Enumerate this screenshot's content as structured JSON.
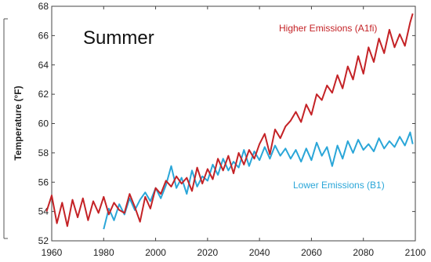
{
  "chart_data": {
    "type": "line",
    "annotation": "Summer",
    "ylabel": "Temperature (°F)",
    "xlim": [
      1960,
      2100
    ],
    "ylim": [
      52,
      68
    ],
    "x_ticks": [
      1960,
      1980,
      2000,
      2020,
      2040,
      2060,
      2080,
      2100
    ],
    "y_ticks": [
      52,
      54,
      56,
      58,
      60,
      62,
      64,
      66,
      68
    ],
    "grid": false,
    "series": [
      {
        "name": "Higher Emissions (A1fi)",
        "color": "#c42226",
        "x": [
          1958,
          1960,
          1962,
          1964,
          1966,
          1968,
          1970,
          1972,
          1974,
          1976,
          1978,
          1980,
          1982,
          1984,
          1986,
          1988,
          1990,
          1992,
          1994,
          1996,
          1998,
          2000,
          2002,
          2004,
          2006,
          2008,
          2010,
          2012,
          2014,
          2016,
          2018,
          2020,
          2022,
          2024,
          2026,
          2028,
          2030,
          2032,
          2034,
          2036,
          2038,
          2040,
          2042,
          2044,
          2046,
          2048,
          2050,
          2052,
          2054,
          2056,
          2058,
          2060,
          2062,
          2064,
          2066,
          2068,
          2070,
          2072,
          2074,
          2076,
          2078,
          2080,
          2082,
          2084,
          2086,
          2088,
          2090,
          2092,
          2094,
          2096,
          2098,
          2099
        ],
        "values": [
          54.0,
          55.1,
          53.2,
          54.6,
          53.0,
          54.8,
          53.6,
          54.9,
          53.4,
          54.7,
          53.9,
          55.0,
          53.8,
          54.6,
          54.1,
          53.9,
          55.2,
          54.3,
          53.3,
          55.0,
          54.2,
          55.6,
          55.2,
          56.1,
          55.7,
          56.4,
          55.9,
          56.3,
          55.4,
          57.0,
          55.9,
          56.9,
          56.2,
          57.6,
          56.8,
          57.8,
          56.6,
          58.0,
          57.2,
          58.2,
          57.6,
          58.6,
          59.3,
          57.9,
          59.6,
          59.0,
          59.8,
          60.2,
          60.8,
          60.1,
          61.3,
          60.6,
          62.0,
          61.6,
          62.6,
          62.1,
          63.3,
          62.4,
          63.9,
          63.0,
          64.6,
          63.4,
          65.2,
          64.2,
          65.8,
          64.8,
          66.4,
          65.2,
          66.1,
          65.3,
          66.9,
          67.5
        ]
      },
      {
        "name": "Lower Emissions (B1)",
        "color": "#2aa6d8",
        "x": [
          1980,
          1982,
          1984,
          1986,
          1988,
          1990,
          1992,
          1994,
          1996,
          1998,
          2000,
          2002,
          2004,
          2006,
          2008,
          2010,
          2012,
          2014,
          2016,
          2018,
          2020,
          2022,
          2024,
          2026,
          2028,
          2030,
          2032,
          2034,
          2036,
          2038,
          2040,
          2042,
          2044,
          2046,
          2048,
          2050,
          2052,
          2054,
          2056,
          2058,
          2060,
          2062,
          2064,
          2066,
          2068,
          2070,
          2072,
          2074,
          2076,
          2078,
          2080,
          2082,
          2084,
          2086,
          2088,
          2090,
          2092,
          2094,
          2096,
          2098,
          2099
        ],
        "values": [
          52.8,
          54.2,
          53.4,
          54.5,
          53.8,
          54.9,
          54.1,
          54.8,
          55.3,
          54.7,
          55.6,
          54.9,
          55.8,
          57.1,
          55.6,
          56.3,
          55.2,
          56.8,
          55.7,
          56.4,
          56.1,
          57.2,
          56.5,
          57.6,
          56.8,
          57.4,
          57.0,
          58.2,
          57.1,
          58.1,
          57.5,
          58.4,
          57.6,
          58.5,
          57.8,
          58.3,
          57.6,
          58.2,
          57.4,
          58.3,
          57.5,
          58.7,
          57.8,
          58.4,
          57.1,
          58.5,
          57.6,
          58.8,
          58.0,
          58.9,
          58.2,
          58.6,
          58.1,
          59.0,
          58.3,
          58.8,
          58.4,
          59.1,
          58.5,
          59.4,
          58.6
        ]
      }
    ]
  }
}
